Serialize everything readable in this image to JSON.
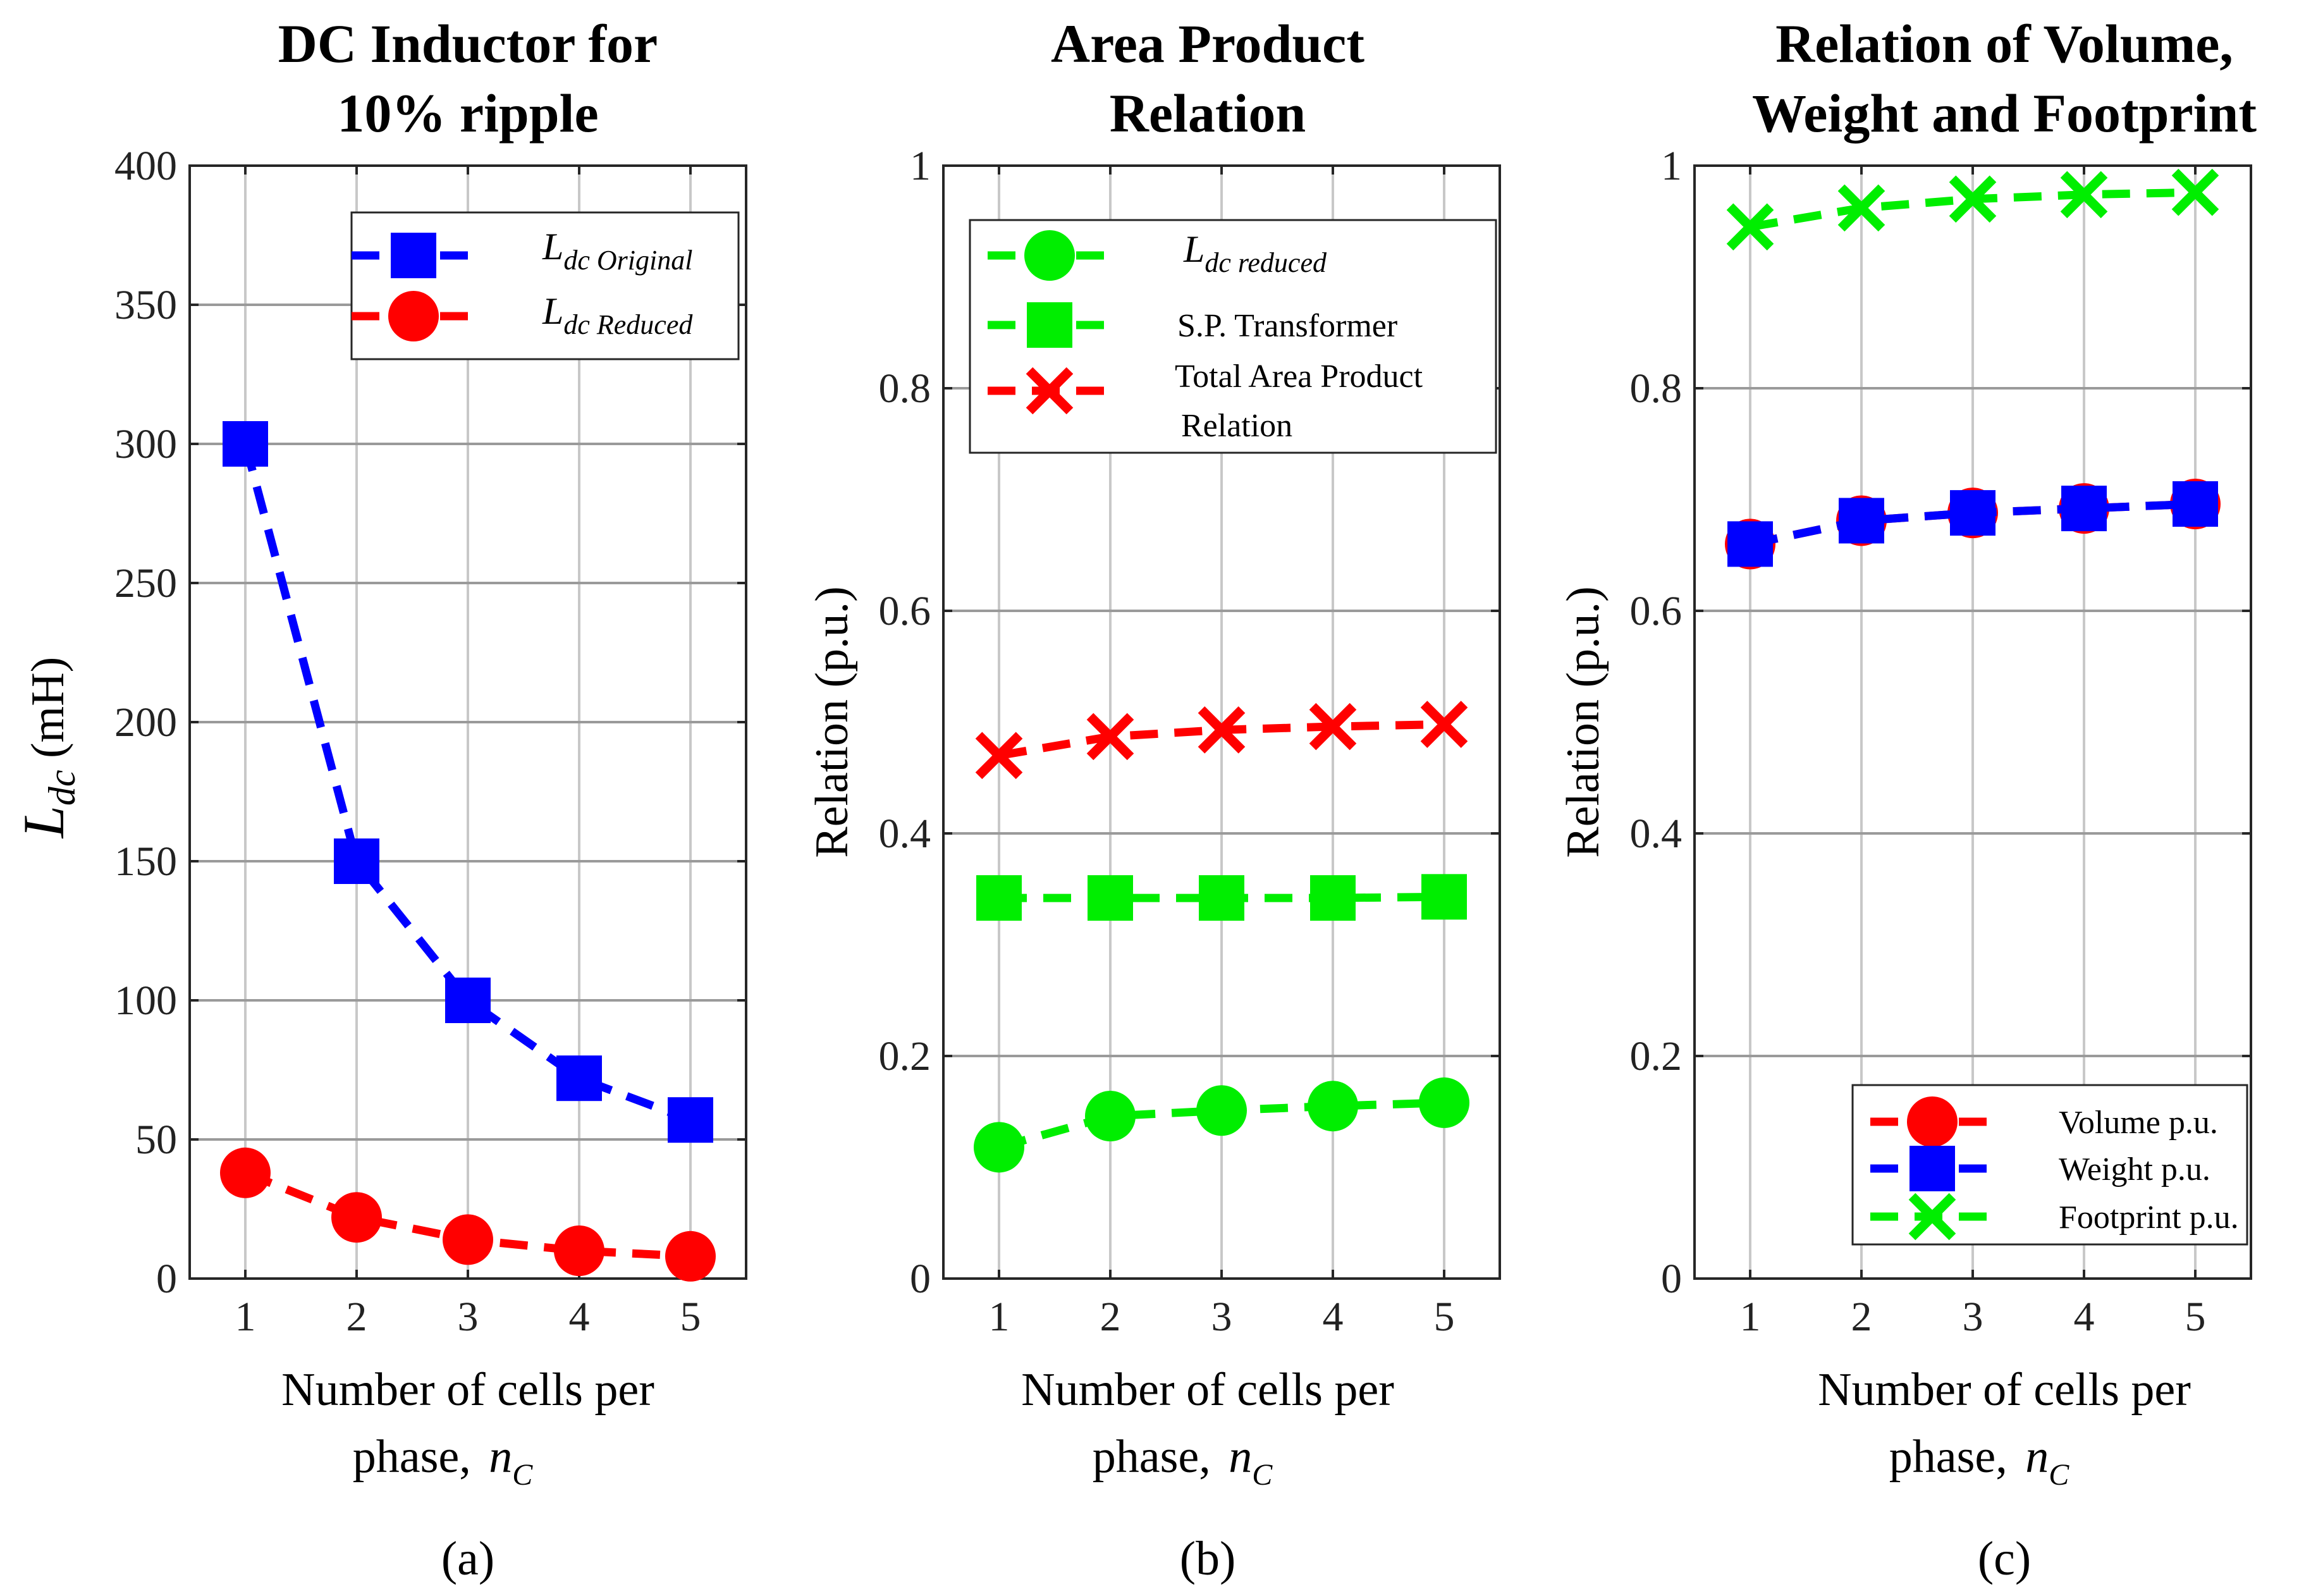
{
  "chart_data": [
    {
      "type": "line",
      "title": [
        "DC Inductor for",
        "10% ripple"
      ],
      "xlabel": [
        "Number of cells per",
        "phase,"
      ],
      "xlabel_symbol": "n",
      "xlabel_subscript": "C",
      "ylabel_symbol": "L",
      "ylabel_subscript": "dc",
      "ylabel_unit": "(mH)",
      "caption": "(a)",
      "x": [
        1,
        2,
        3,
        4,
        5
      ],
      "xlim": [
        0.5,
        5.5
      ],
      "ylim": [
        0,
        400
      ],
      "yticks": [
        0,
        50,
        100,
        150,
        200,
        250,
        300,
        350,
        400
      ],
      "yticklabels": [
        "0",
        "50",
        "100",
        "150",
        "200",
        "250",
        "300",
        "350",
        "400"
      ],
      "grid": true,
      "legend_position": "top-right",
      "series": [
        {
          "name": "L",
          "sub": "dc Original",
          "marker": "square",
          "color": "#0000ff",
          "values": [
            300,
            150,
            100,
            72,
            57
          ]
        },
        {
          "name": "L",
          "sub": "dc Reduced",
          "marker": "circle",
          "color": "#ff0000",
          "values": [
            38,
            22,
            14,
            10,
            8
          ]
        }
      ]
    },
    {
      "type": "line",
      "title": [
        "Area Product",
        "Relation"
      ],
      "xlabel": [
        "Number of cells per",
        "phase,"
      ],
      "xlabel_symbol": "n",
      "xlabel_subscript": "C",
      "ylabel": "Relation (p.u.)",
      "caption": "(b)",
      "x": [
        1,
        2,
        3,
        4,
        5
      ],
      "xlim": [
        0.5,
        5.5
      ],
      "ylim": [
        0,
        1
      ],
      "yticks": [
        0,
        0.2,
        0.4,
        0.6,
        0.8,
        1
      ],
      "yticklabels": [
        "0",
        "0.2",
        "0.4",
        "0.6",
        "0.8",
        "1"
      ],
      "grid": true,
      "legend_position": "top-left",
      "series": [
        {
          "name": "L",
          "sub": "dc reduced",
          "marker": "circle",
          "color": "#00ee00",
          "values": [
            0.118,
            0.146,
            0.151,
            0.155,
            0.158
          ]
        },
        {
          "name": "S.P. Transformer",
          "marker": "square",
          "color": "#00ee00",
          "values": [
            0.342,
            0.342,
            0.342,
            0.342,
            0.343
          ]
        },
        {
          "name": "Total Area Product",
          "name2": "Relation",
          "marker": "x",
          "color": "#ff0000",
          "values": [
            0.47,
            0.487,
            0.493,
            0.496,
            0.498
          ]
        }
      ]
    },
    {
      "type": "line",
      "title": [
        "Relation of Volume,",
        "Weight and Footprint"
      ],
      "xlabel": [
        "Number of cells per",
        "phase,"
      ],
      "xlabel_symbol": "n",
      "xlabel_subscript": "C",
      "ylabel": "Relation (p.u.)",
      "caption": "(c)",
      "x": [
        1,
        2,
        3,
        4,
        5
      ],
      "xlim": [
        0.5,
        5.5
      ],
      "ylim": [
        0,
        1
      ],
      "yticks": [
        0,
        0.2,
        0.4,
        0.6,
        0.8,
        1
      ],
      "yticklabels": [
        "0",
        "0.2",
        "0.4",
        "0.6",
        "0.8",
        "1"
      ],
      "grid": true,
      "legend_position": "bottom-right",
      "series": [
        {
          "name": "Volume p.u.",
          "marker": "circle",
          "color": "#ff0000",
          "values": [
            0.66,
            0.681,
            0.688,
            0.692,
            0.696
          ]
        },
        {
          "name": "Weight p.u.",
          "marker": "square",
          "color": "#0000ff",
          "values": [
            0.66,
            0.681,
            0.688,
            0.692,
            0.696
          ]
        },
        {
          "name": "Footprint p.u.",
          "marker": "x",
          "color": "#00ee00",
          "values": [
            0.945,
            0.962,
            0.97,
            0.974,
            0.976
          ]
        }
      ]
    }
  ]
}
